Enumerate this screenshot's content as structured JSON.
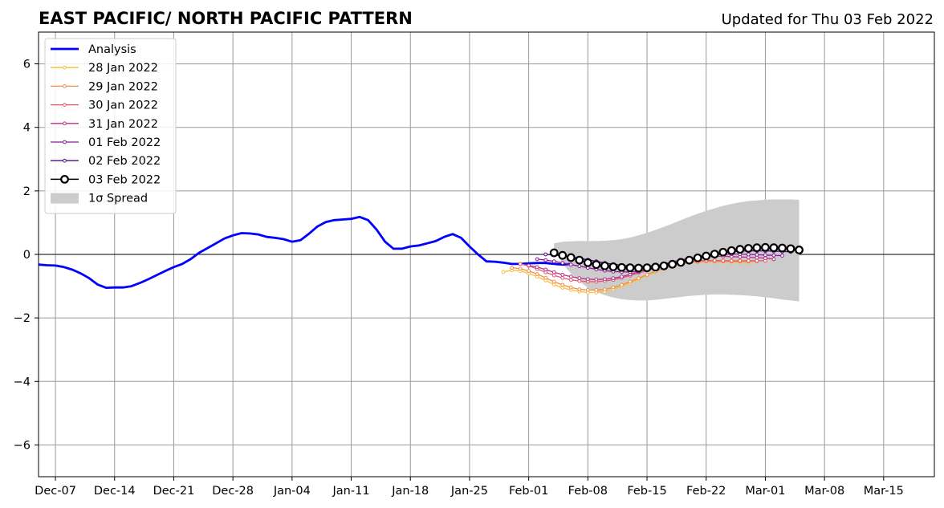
{
  "header": {
    "title": "EAST PACIFIC/ NORTH PACIFIC PATTERN",
    "updated": "Updated for Thu 03 Feb 2022"
  },
  "chart_data": {
    "type": "line",
    "title": "EAST PACIFIC/ NORTH PACIFIC PATTERN",
    "subtitle": "Updated for Thu 03 Feb 2022",
    "xlabel": "",
    "ylabel": "",
    "x_axis": {
      "type": "date",
      "range": [
        "2021-12-05",
        "2022-03-21"
      ],
      "ticks": [
        "Dec-07",
        "Dec-14",
        "Dec-21",
        "Dec-28",
        "Jan-04",
        "Jan-11",
        "Jan-18",
        "Jan-25",
        "Feb-01",
        "Feb-08",
        "Feb-15",
        "Feb-22",
        "Mar-01",
        "Mar-08",
        "Mar-15"
      ],
      "tick_dates": [
        "2021-12-07",
        "2021-12-14",
        "2021-12-21",
        "2021-12-28",
        "2022-01-04",
        "2022-01-11",
        "2022-01-18",
        "2022-01-25",
        "2022-02-01",
        "2022-02-08",
        "2022-02-15",
        "2022-02-22",
        "2022-03-01",
        "2022-03-08",
        "2022-03-15"
      ]
    },
    "ylim": [
      -7,
      7
    ],
    "yticks": [
      6,
      4,
      2,
      0,
      -2,
      -4,
      -6
    ],
    "ytick_labels": [
      "6",
      "4",
      "2",
      "0",
      "−2",
      "−4",
      "−6"
    ],
    "grid": true,
    "zero_line": true,
    "legend_position": "top-left",
    "colors": {
      "analysis": "#0000ff",
      "spread": "#cccccc",
      "grid": "#999999"
    },
    "series": [
      {
        "name": "Analysis",
        "kind": "analysis",
        "color": "#0000ff",
        "start": "2021-12-05",
        "values": [
          -0.32,
          -0.34,
          -0.35,
          -0.4,
          -0.48,
          -0.6,
          -0.75,
          -0.95,
          -1.05,
          -1.04,
          -1.04,
          -1.0,
          -0.9,
          -0.78,
          -0.65,
          -0.52,
          -0.4,
          -0.3,
          -0.15,
          0.05,
          0.2,
          0.35,
          0.5,
          0.6,
          0.67,
          0.66,
          0.63,
          0.55,
          0.52,
          0.48,
          0.4,
          0.45,
          0.65,
          0.88,
          1.02,
          1.08,
          1.1,
          1.12,
          1.18,
          1.08,
          0.78,
          0.4,
          0.18,
          0.18,
          0.25,
          0.28,
          0.35,
          0.42,
          0.55,
          0.64,
          0.52,
          0.25,
          0.0,
          -0.22,
          -0.23,
          -0.26,
          -0.3,
          -0.3,
          -0.28,
          -0.27,
          -0.27,
          -0.3,
          -0.32,
          -0.3
        ]
      },
      {
        "name": "28 Jan 2022",
        "kind": "forecast",
        "color": "#f5c13a",
        "start": "2022-01-29",
        "values": [
          -0.55,
          -0.5,
          -0.52,
          -0.6,
          -0.7,
          -0.82,
          -0.95,
          -1.05,
          -1.12,
          -1.17,
          -1.2,
          -1.2,
          -1.17,
          -1.1,
          -1.0,
          -0.9,
          -0.78,
          -0.66,
          -0.55,
          -0.45,
          -0.36,
          -0.3,
          -0.26,
          -0.24,
          -0.23,
          -0.23,
          -0.23,
          -0.24,
          -0.25,
          -0.25
        ]
      },
      {
        "name": "29 Jan 2022",
        "kind": "forecast",
        "color": "#f28c4a",
        "start": "2022-01-30",
        "values": [
          -0.42,
          -0.45,
          -0.52,
          -0.62,
          -0.74,
          -0.86,
          -0.96,
          -1.04,
          -1.1,
          -1.12,
          -1.12,
          -1.1,
          -1.04,
          -0.96,
          -0.86,
          -0.75,
          -0.64,
          -0.53,
          -0.44,
          -0.36,
          -0.3,
          -0.26,
          -0.24,
          -0.22,
          -0.22,
          -0.22,
          -0.22,
          -0.22,
          -0.22,
          -0.22
        ]
      },
      {
        "name": "30 Jan 2022",
        "kind": "forecast",
        "color": "#e05a6e",
        "start": "2022-01-31",
        "values": [
          -0.3,
          -0.36,
          -0.46,
          -0.56,
          -0.66,
          -0.74,
          -0.8,
          -0.84,
          -0.86,
          -0.86,
          -0.84,
          -0.8,
          -0.74,
          -0.67,
          -0.59,
          -0.51,
          -0.43,
          -0.36,
          -0.3,
          -0.25,
          -0.22,
          -0.2,
          -0.19,
          -0.19,
          -0.2,
          -0.2,
          -0.2,
          -0.2,
          -0.2,
          -0.2
        ]
      },
      {
        "name": "31 Jan 2022",
        "kind": "forecast",
        "color": "#b8308a",
        "start": "2022-02-01",
        "values": [
          -0.35,
          -0.4,
          -0.48,
          -0.56,
          -0.64,
          -0.7,
          -0.75,
          -0.78,
          -0.79,
          -0.78,
          -0.75,
          -0.7,
          -0.63,
          -0.55,
          -0.46,
          -0.38,
          -0.3,
          -0.23,
          -0.17,
          -0.12,
          -0.09,
          -0.07,
          -0.06,
          -0.06,
          -0.07,
          -0.08,
          -0.09,
          -0.1,
          -0.12,
          -0.15
        ]
      },
      {
        "name": "01 Feb 2022",
        "kind": "forecast",
        "color": "#8a1a9b",
        "start": "2022-02-02",
        "values": [
          -0.15,
          -0.18,
          -0.22,
          -0.27,
          -0.32,
          -0.37,
          -0.42,
          -0.47,
          -0.51,
          -0.54,
          -0.55,
          -0.55,
          -0.53,
          -0.49,
          -0.43,
          -0.36,
          -0.29,
          -0.22,
          -0.16,
          -0.1,
          -0.05,
          -0.02,
          0.0,
          0.01,
          0.01,
          0.0,
          -0.01,
          -0.02,
          -0.03,
          -0.04
        ]
      },
      {
        "name": "02 Feb 2022",
        "kind": "forecast",
        "color": "#4b0e8a",
        "start": "2022-02-03",
        "values": [
          0.0,
          -0.02,
          -0.05,
          -0.08,
          -0.12,
          -0.17,
          -0.22,
          -0.27,
          -0.31,
          -0.34,
          -0.36,
          -0.37,
          -0.37,
          -0.35,
          -0.31,
          -0.26,
          -0.2,
          -0.14,
          -0.08,
          -0.03,
          0.02,
          0.06,
          0.08,
          0.1,
          0.11,
          0.11,
          0.11,
          0.1,
          0.09,
          0.08
        ]
      },
      {
        "name": "03 Feb 2022",
        "kind": "current",
        "color": "#000000",
        "start": "2022-02-04",
        "values": [
          0.05,
          -0.03,
          -0.1,
          -0.18,
          -0.26,
          -0.32,
          -0.36,
          -0.39,
          -0.41,
          -0.42,
          -0.43,
          -0.42,
          -0.4,
          -0.36,
          -0.31,
          -0.25,
          -0.18,
          -0.11,
          -0.05,
          0.01,
          0.07,
          0.12,
          0.16,
          0.19,
          0.21,
          0.22,
          0.21,
          0.2,
          0.18,
          0.14
        ]
      }
    ],
    "spread": {
      "name": "1σ Spread",
      "start": "2022-02-04",
      "upper": [
        0.35,
        0.4,
        0.41,
        0.42,
        0.42,
        0.42,
        0.43,
        0.45,
        0.48,
        0.53,
        0.6,
        0.68,
        0.77,
        0.87,
        0.97,
        1.08,
        1.18,
        1.28,
        1.37,
        1.45,
        1.53,
        1.59,
        1.64,
        1.68,
        1.7,
        1.72,
        1.73,
        1.73,
        1.73,
        1.72
      ],
      "lower": [
        0.2,
        -0.3,
        -0.6,
        -0.85,
        -1.05,
        -1.18,
        -1.28,
        -1.36,
        -1.41,
        -1.44,
        -1.45,
        -1.45,
        -1.43,
        -1.4,
        -1.37,
        -1.34,
        -1.31,
        -1.29,
        -1.27,
        -1.26,
        -1.26,
        -1.27,
        -1.28,
        -1.3,
        -1.32,
        -1.35,
        -1.38,
        -1.42,
        -1.45,
        -1.48
      ]
    }
  }
}
